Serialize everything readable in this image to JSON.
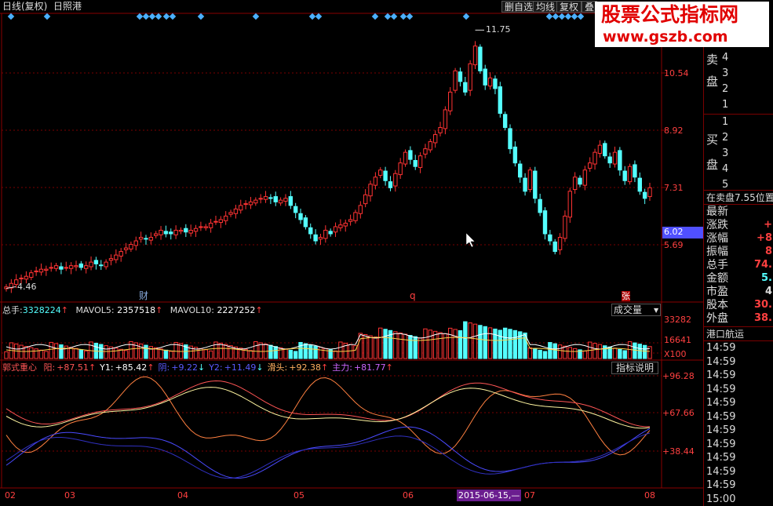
{
  "toolbar": {
    "period": "日线(复权)",
    "stock_name": "日照港",
    "btn_watchlist": "删自选",
    "btn_ma": "均线",
    "btn_restore": "复权",
    "btn_overlay": "叠"
  },
  "watermark": {
    "title": "股票公式指标网",
    "url": "www.gszb.com"
  },
  "price_chart": {
    "type": "candlestick",
    "y_ticks": [
      "10.54",
      "8.92",
      "7.31",
      "5.69"
    ],
    "current_price_label": "6.02",
    "high_label": "11.75",
    "low_label": "4.46",
    "event_markers": [
      "财",
      "q",
      "张"
    ],
    "up_color": "#ff3333",
    "down_color": "#54ffff"
  },
  "volume_panel": {
    "total_label": "总手:",
    "total_value": "3328224",
    "ma5_label": "MAVOL5:",
    "ma5_value": "2357518",
    "ma10_label": "MAVOL10:",
    "ma10_value": "2227252",
    "indicator_select": "成交量",
    "y_ticks": [
      "33282",
      "16641",
      "X100"
    ]
  },
  "indicator_panel": {
    "name": "郭式重心",
    "items": [
      {
        "label": "阳:",
        "value": "+87.51",
        "arrow": "↑",
        "color": "#ff5555"
      },
      {
        "label": "Y1:",
        "value": "+85.42",
        "arrow": "↑",
        "color": "#ffff99"
      },
      {
        "label": "阴:",
        "value": "+9.22",
        "arrow": "↓",
        "color": "#5a5aff"
      },
      {
        "label": "Y2:",
        "value": "+11.49",
        "arrow": "↓",
        "color": "#5a5aff"
      },
      {
        "label": "滑头:",
        "value": "+92.38",
        "arrow": "↑",
        "color": "#ffb060"
      },
      {
        "label": "主力:",
        "value": "+81.77",
        "arrow": "↑",
        "color": "#cc66ff"
      }
    ],
    "help_button": "指标说明",
    "y_ticks": [
      "+96.28",
      "+67.66",
      "+38.44"
    ]
  },
  "x_axis": {
    "labels": [
      "02",
      "03",
      "04",
      "05",
      "06",
      "07",
      "08"
    ],
    "cursor_date": "2015-06-15,—"
  },
  "right_panel": {
    "sell_label_1": "卖",
    "sell_label_2": "盘",
    "sell_levels": [
      "4",
      "3",
      "2",
      "1"
    ],
    "buy_label_1": "买",
    "buy_label_2": "盘",
    "buy_levels": [
      "1",
      "2",
      "3",
      "4",
      "5"
    ],
    "order_status": "在卖盘7.55位置",
    "quote_rows": [
      {
        "label": "最新",
        "value": ""
      },
      {
        "label": "涨跌",
        "value": "+"
      },
      {
        "label": "涨幅",
        "value": "+8"
      },
      {
        "label": "振幅",
        "value": "8"
      },
      {
        "label": "总手",
        "value": "74."
      },
      {
        "label": "金额",
        "value": "5."
      },
      {
        "label": "市盈",
        "value": "4"
      },
      {
        "label": "股本",
        "value": "30."
      },
      {
        "label": "外盘",
        "value": "38."
      }
    ],
    "ticker_title": "港口航运",
    "ticks": [
      "14:59",
      "14:59",
      "14:59",
      "14:59",
      "14:59",
      "14:59",
      "14:59",
      "14:59",
      "14:59",
      "14:59",
      "14:59",
      "15:00"
    ]
  }
}
